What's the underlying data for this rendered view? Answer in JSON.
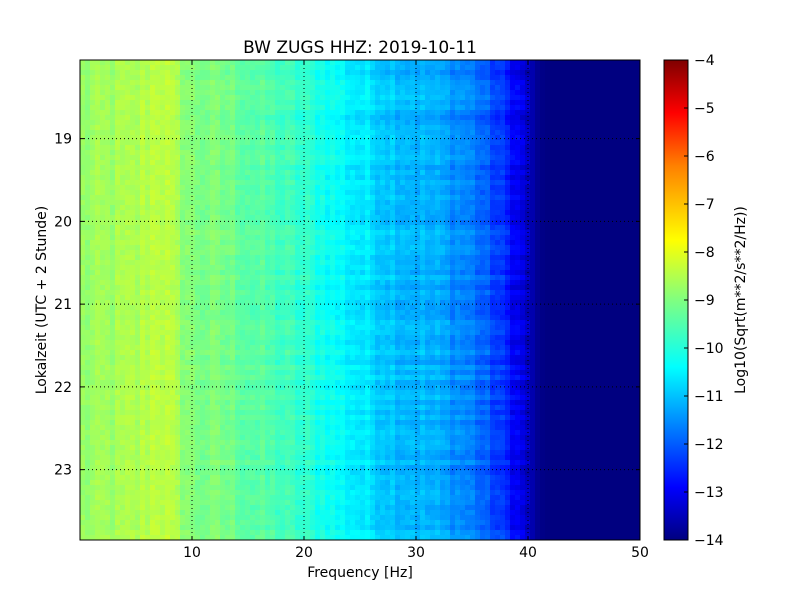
{
  "chart_data": {
    "type": "heatmap",
    "title": "BW ZUGS HHZ: 2019-10-11",
    "xlabel": "Frequency [Hz]",
    "ylabel": "Lokalzeit (UTC + 2 Stunde)",
    "xlim": [
      0,
      50
    ],
    "ylim": [
      23.85,
      18.05
    ],
    "x_ticks": [
      10,
      20,
      30,
      40,
      50
    ],
    "y_ticks": [
      19,
      20,
      21,
      22,
      23
    ],
    "grid": true,
    "colormap": "jet",
    "colorbar": {
      "label": "Log10(Sqrt(m**2/s**2/Hz))",
      "range": [
        -14,
        -4
      ],
      "ticks": [
        -4,
        -5,
        -6,
        -7,
        -8,
        -9,
        -10,
        -11,
        -12,
        -13,
        -14
      ]
    },
    "freq_profile": {
      "frequencies": [
        0,
        5,
        7,
        8,
        10,
        13,
        16,
        20,
        24.5,
        28,
        32,
        35,
        38,
        40,
        41,
        42,
        50
      ],
      "values": [
        -8.8,
        -8.6,
        -8.3,
        -8.5,
        -9.0,
        -9.1,
        -9.4,
        -9.8,
        -10.4,
        -10.8,
        -11.1,
        -11.5,
        -12.4,
        -13.3,
        -13.9,
        -14.0,
        -14.0
      ]
    },
    "colors": {
      "jet_stops": [
        "#00007f",
        "#0000ff",
        "#0080ff",
        "#00ffff",
        "#80ff80",
        "#ffff00",
        "#ff8000",
        "#ff0000",
        "#7f0000"
      ]
    }
  }
}
